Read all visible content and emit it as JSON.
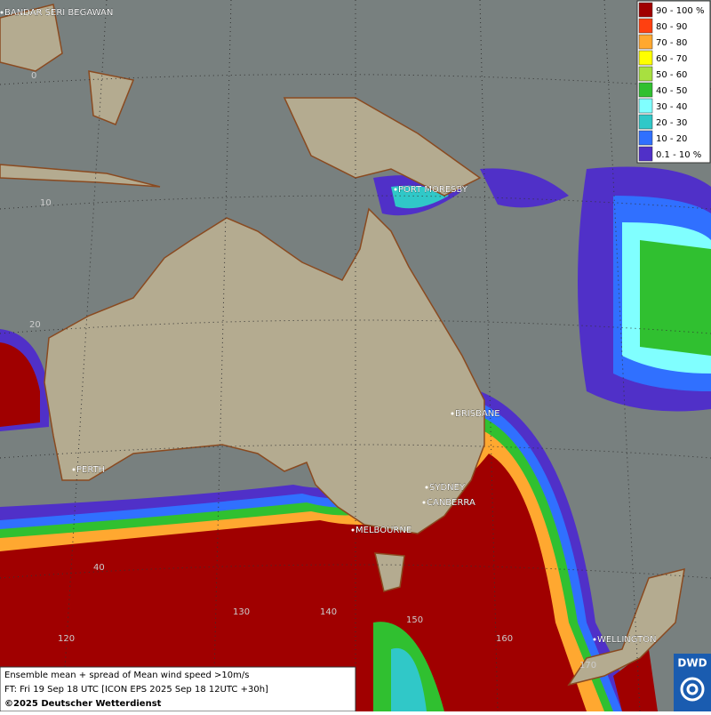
{
  "legend": {
    "items": [
      {
        "label": "90 - 100 %",
        "color": "#a00000"
      },
      {
        "label": "80 - 90",
        "color": "#ff4010"
      },
      {
        "label": "70 - 80",
        "color": "#ffa830"
      },
      {
        "label": "60 - 70",
        "color": "#ffff00"
      },
      {
        "label": "50 - 60",
        "color": "#a8e040"
      },
      {
        "label": "40 - 50",
        "color": "#30c030"
      },
      {
        "label": "30 - 40",
        "color": "#80ffff"
      },
      {
        "label": "20 - 30",
        "color": "#30c8c8"
      },
      {
        "label": "10 - 20",
        "color": "#3070ff"
      },
      {
        "label": "0.1 - 10 %",
        "color": "#5030c8"
      }
    ]
  },
  "map": {
    "places": [
      "BANDAR SERI BEGAWAN",
      "PORT MORESBY",
      "BRISBANE",
      "SYDNEY",
      "CANBERRA",
      "MELBOURNE",
      "PERTH",
      "WELLINGTON"
    ],
    "lat_labels": [
      "0",
      "10",
      "20",
      "40"
    ],
    "lon_labels": [
      "120",
      "130",
      "140",
      "150",
      "160",
      "170"
    ]
  },
  "footer": {
    "lines": [
      "Ensemble mean + spread of Mean wind speed >10m/s",
      "FT: Fri 19 Sep 18 UTC [ICON EPS 2025 Sep 18 12UTC +30h]",
      "©2025 Deutscher Wetterdienst"
    ]
  },
  "logo": "DWD"
}
